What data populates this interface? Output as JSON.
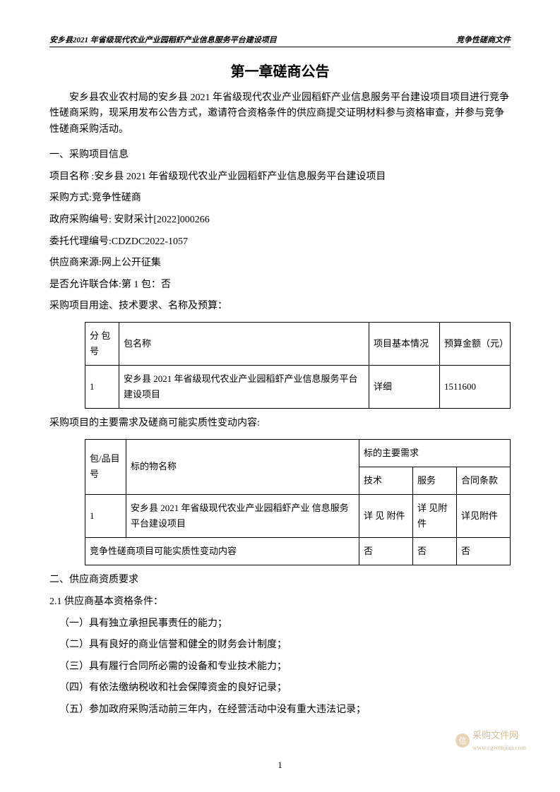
{
  "header": {
    "left": "安乡县2021 年省级现代农业产业园稻虾产业信息服务平台建设项目",
    "right": "竞争性磋商文件"
  },
  "title": "第一章磋商公告",
  "intro": "安乡县农业农村局的安乡县 2021 年省级现代农业产业园稻虾产业信息服务平台建设项目项目进行竞争性磋商采购，现采用发布公告方式，邀请符合资格条件的供应商提交证明材料参与资格审查，并参与竞争性磋商采购活动。",
  "s1_heading": "一、采购项目信息",
  "lines": {
    "proj_name": "项目名称 :安乡县 2021 年省级现代农业产业园稻虾产业信息服务平台建设项目",
    "purchase_method": "采购方式:竞争性磋商",
    "gov_no": "政府采购编号: 安财采计[2022]000266",
    "agent_no": "委托代理编号:CDZDC2022-1057",
    "supplier_src": "供应商来源:网上公开征集",
    "consortium": "是否允许联合体:第 1 包：否",
    "use_budget": "采购项目用途、技术要求、名称及预算："
  },
  "table1": {
    "head": {
      "c1": "分 包号",
      "c2": "包名称",
      "c3": "项目基本情况",
      "c4": "预算金额（元）"
    },
    "row": {
      "c1": "1",
      "c2": "安乡县 2021 年省级现代农业产业园稻虾产业信息服务平台建设项目",
      "c3": "详细",
      "c4": "1511600"
    }
  },
  "between_tables": "采购项目的主要需求及磋商可能实质性变动内容:",
  "table2": {
    "head": {
      "c1": "包/品目号",
      "c2": "标的物名称",
      "merged": "标的主要需求",
      "c3": "技术",
      "c4": "服务",
      "c5": "合同条款"
    },
    "row1": {
      "c1": "1",
      "c2": "安乡县 2021 年省级现代农业产业园稻虾产业  信息服务平台建设项目",
      "c3": "详 见 附件",
      "c4": "详 见附件",
      "c5": "详见附件"
    },
    "row2": {
      "c2": "竞争性磋商项目可能实质性变动内容",
      "c3": "否",
      "c4": "否",
      "c5": "否"
    }
  },
  "s2_heading": " 二、供应商资质要求",
  "s2_1": "2.1 供应商基本资格条件：",
  "req1": "（一）具有独立承担民事责任的能力；",
  "req2": "（二）具有良好的商业信誉和健全的财务会计制度；",
  "req3": "（三）具有履行合同所必需的设备和专业技术能力；",
  "req4": "（四）有依法缴纳税收和社会保障资金的良好记录；",
  "req5": "（五）参加政府采购活动前三年内，在经营活动中没有重大违法记录；",
  "page_number": "1",
  "watermark": {
    "text": "采购文件网",
    "url": "www.cgwenjian.com",
    "icon": "信"
  }
}
